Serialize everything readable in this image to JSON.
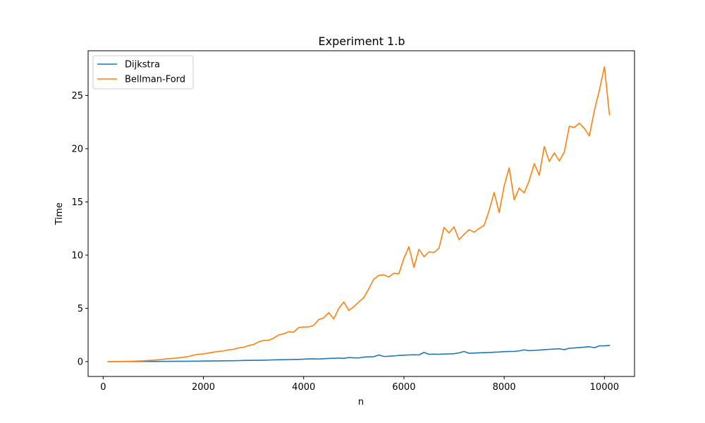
{
  "chart_data": {
    "type": "line",
    "title": "Experiment 1.b",
    "xlabel": "n",
    "ylabel": "Time",
    "xlim": [
      -300,
      10600
    ],
    "ylim": [
      -1.4,
      29.2
    ],
    "xticks": [
      0,
      2000,
      4000,
      6000,
      8000,
      10000
    ],
    "yticks": [
      0,
      5,
      10,
      15,
      20,
      25
    ],
    "grid": false,
    "legend_position": "top-left",
    "x": [
      100,
      200,
      300,
      400,
      500,
      600,
      700,
      800,
      900,
      1000,
      1100,
      1200,
      1300,
      1400,
      1500,
      1600,
      1700,
      1800,
      1900,
      2000,
      2100,
      2200,
      2300,
      2400,
      2500,
      2600,
      2700,
      2800,
      2900,
      3000,
      3100,
      3200,
      3300,
      3400,
      3500,
      3600,
      3700,
      3800,
      3900,
      4000,
      4100,
      4200,
      4300,
      4400,
      4500,
      4600,
      4700,
      4800,
      4900,
      5000,
      5100,
      5200,
      5300,
      5400,
      5500,
      5600,
      5700,
      5800,
      5900,
      6000,
      6100,
      6200,
      6300,
      6400,
      6500,
      6600,
      6700,
      6800,
      6900,
      7000,
      7100,
      7200,
      7300,
      7400,
      7500,
      7600,
      7700,
      7800,
      7900,
      8000,
      8100,
      8200,
      8300,
      8400,
      8500,
      8600,
      8700,
      8800,
      8900,
      9000,
      9100,
      9200,
      9300,
      9400,
      9500,
      9600,
      9700,
      9800,
      9900,
      10000,
      10100
    ],
    "series": [
      {
        "name": "Dijkstra",
        "color": "#1f77b4",
        "values": [
          0.0,
          0.0,
          0.0,
          0.0,
          0.0,
          0.0,
          0.01,
          0.01,
          0.01,
          0.01,
          0.01,
          0.02,
          0.02,
          0.02,
          0.03,
          0.03,
          0.03,
          0.04,
          0.04,
          0.05,
          0.05,
          0.06,
          0.06,
          0.07,
          0.08,
          0.08,
          0.09,
          0.1,
          0.11,
          0.12,
          0.12,
          0.13,
          0.14,
          0.16,
          0.17,
          0.18,
          0.19,
          0.2,
          0.2,
          0.23,
          0.25,
          0.26,
          0.24,
          0.27,
          0.29,
          0.31,
          0.33,
          0.3,
          0.38,
          0.35,
          0.34,
          0.42,
          0.45,
          0.46,
          0.62,
          0.48,
          0.5,
          0.53,
          0.58,
          0.6,
          0.62,
          0.64,
          0.62,
          0.86,
          0.68,
          0.7,
          0.68,
          0.71,
          0.72,
          0.74,
          0.82,
          0.95,
          0.78,
          0.8,
          0.82,
          0.84,
          0.85,
          0.88,
          0.9,
          0.94,
          0.95,
          0.96,
          1.0,
          1.1,
          1.02,
          1.05,
          1.08,
          1.12,
          1.15,
          1.18,
          1.2,
          1.12,
          1.25,
          1.28,
          1.32,
          1.35,
          1.4,
          1.3,
          1.48,
          1.48,
          1.52
        ]
      },
      {
        "name": "Bellman-Ford",
        "color": "#ff7f0e",
        "values": [
          0.0,
          0.0,
          0.0,
          0.01,
          0.02,
          0.03,
          0.05,
          0.07,
          0.1,
          0.13,
          0.17,
          0.22,
          0.27,
          0.3,
          0.34,
          0.4,
          0.48,
          0.6,
          0.68,
          0.72,
          0.8,
          0.88,
          0.95,
          1.0,
          1.1,
          1.15,
          1.28,
          1.35,
          1.5,
          1.6,
          1.85,
          1.98,
          2.0,
          2.2,
          2.5,
          2.6,
          2.8,
          2.75,
          3.2,
          3.25,
          3.25,
          3.4,
          3.95,
          4.1,
          4.6,
          4.0,
          5.0,
          5.6,
          4.8,
          5.15,
          5.6,
          6.0,
          6.85,
          7.75,
          8.1,
          8.15,
          7.95,
          8.3,
          8.25,
          9.7,
          10.8,
          8.85,
          10.55,
          9.85,
          10.3,
          10.25,
          10.65,
          12.6,
          12.1,
          12.65,
          11.45,
          11.95,
          12.4,
          12.15,
          12.5,
          12.8,
          14.2,
          15.9,
          14.0,
          16.5,
          18.2,
          15.2,
          16.3,
          15.85,
          17.0,
          18.6,
          17.5,
          20.2,
          18.8,
          19.6,
          18.85,
          19.7,
          22.1,
          22.0,
          22.4,
          21.9,
          21.2,
          23.6,
          25.5,
          27.7,
          23.2
        ]
      }
    ]
  }
}
